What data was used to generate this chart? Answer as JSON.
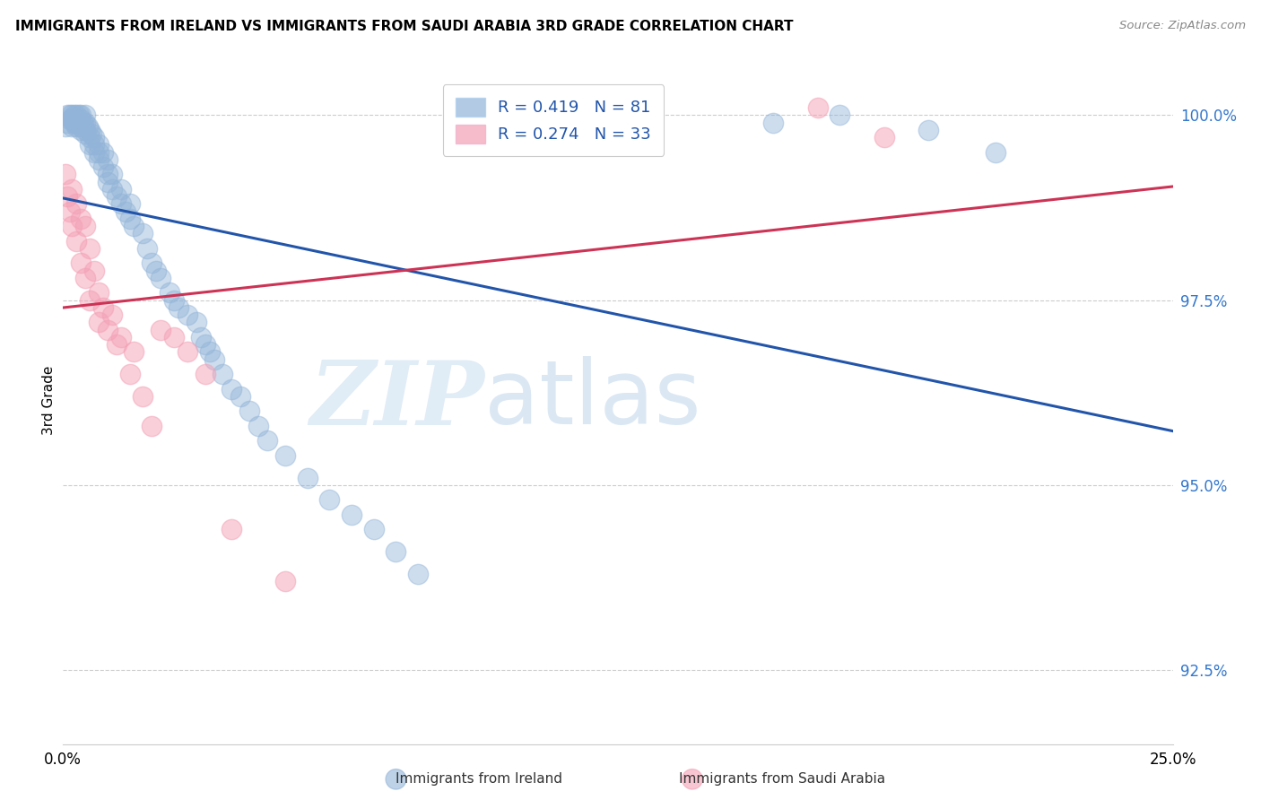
{
  "title": "IMMIGRANTS FROM IRELAND VS IMMIGRANTS FROM SAUDI ARABIA 3RD GRADE CORRELATION CHART",
  "source": "Source: ZipAtlas.com",
  "ylabel_label": "3rd Grade",
  "legend_ireland": "Immigrants from Ireland",
  "legend_saudi": "Immigrants from Saudi Arabia",
  "R_ireland": 0.419,
  "N_ireland": 81,
  "R_saudi": 0.274,
  "N_saudi": 33,
  "watermark_zip": "ZIP",
  "watermark_atlas": "atlas",
  "ireland_color": "#92b4d8",
  "saudi_color": "#f4a0b5",
  "ireland_line_color": "#2255aa",
  "saudi_line_color": "#cc3355",
  "xlim": [
    0.0,
    0.25
  ],
  "ylim": [
    91.5,
    100.8
  ],
  "yticks": [
    92.5,
    95.0,
    97.5,
    100.0
  ],
  "ytick_labels": [
    "92.5%",
    "95.0%",
    "97.5%",
    "100.0%"
  ],
  "ireland_x": [
    0.0005,
    0.001,
    0.001,
    0.0015,
    0.0015,
    0.002,
    0.002,
    0.002,
    0.0025,
    0.0025,
    0.003,
    0.003,
    0.003,
    0.003,
    0.0035,
    0.0035,
    0.004,
    0.004,
    0.004,
    0.004,
    0.0045,
    0.005,
    0.005,
    0.005,
    0.005,
    0.0055,
    0.006,
    0.006,
    0.006,
    0.0065,
    0.007,
    0.007,
    0.007,
    0.008,
    0.008,
    0.008,
    0.009,
    0.009,
    0.01,
    0.01,
    0.01,
    0.011,
    0.011,
    0.012,
    0.013,
    0.013,
    0.014,
    0.015,
    0.015,
    0.016,
    0.018,
    0.019,
    0.02,
    0.021,
    0.022,
    0.024,
    0.025,
    0.026,
    0.028,
    0.03,
    0.031,
    0.032,
    0.033,
    0.034,
    0.036,
    0.038,
    0.04,
    0.042,
    0.044,
    0.046,
    0.05,
    0.055,
    0.06,
    0.065,
    0.07,
    0.075,
    0.08,
    0.16,
    0.175,
    0.195,
    0.21
  ],
  "ireland_y": [
    99.85,
    100.0,
    99.9,
    100.0,
    99.95,
    100.0,
    99.95,
    99.85,
    100.0,
    99.9,
    100.0,
    99.95,
    99.9,
    99.85,
    100.0,
    99.9,
    100.0,
    99.95,
    99.85,
    99.8,
    99.9,
    100.0,
    99.9,
    99.8,
    99.75,
    99.85,
    99.7,
    99.8,
    99.6,
    99.75,
    99.6,
    99.5,
    99.7,
    99.5,
    99.4,
    99.6,
    99.3,
    99.5,
    99.2,
    99.4,
    99.1,
    99.0,
    99.2,
    98.9,
    98.8,
    99.0,
    98.7,
    98.6,
    98.8,
    98.5,
    98.4,
    98.2,
    98.0,
    97.9,
    97.8,
    97.6,
    97.5,
    97.4,
    97.3,
    97.2,
    97.0,
    96.9,
    96.8,
    96.7,
    96.5,
    96.3,
    96.2,
    96.0,
    95.8,
    95.6,
    95.4,
    95.1,
    94.8,
    94.6,
    94.4,
    94.1,
    93.8,
    99.9,
    100.0,
    99.8,
    99.5
  ],
  "saudi_x": [
    0.0005,
    0.001,
    0.0015,
    0.002,
    0.002,
    0.003,
    0.003,
    0.004,
    0.004,
    0.005,
    0.005,
    0.006,
    0.006,
    0.007,
    0.008,
    0.008,
    0.009,
    0.01,
    0.011,
    0.012,
    0.013,
    0.015,
    0.016,
    0.018,
    0.02,
    0.022,
    0.025,
    0.028,
    0.032,
    0.038,
    0.05,
    0.17,
    0.185
  ],
  "saudi_y": [
    99.2,
    98.9,
    98.7,
    99.0,
    98.5,
    98.8,
    98.3,
    98.6,
    98.0,
    98.5,
    97.8,
    98.2,
    97.5,
    97.9,
    97.6,
    97.2,
    97.4,
    97.1,
    97.3,
    96.9,
    97.0,
    96.5,
    96.8,
    96.2,
    95.8,
    97.1,
    97.0,
    96.8,
    96.5,
    94.4,
    93.7,
    100.1,
    99.7
  ]
}
